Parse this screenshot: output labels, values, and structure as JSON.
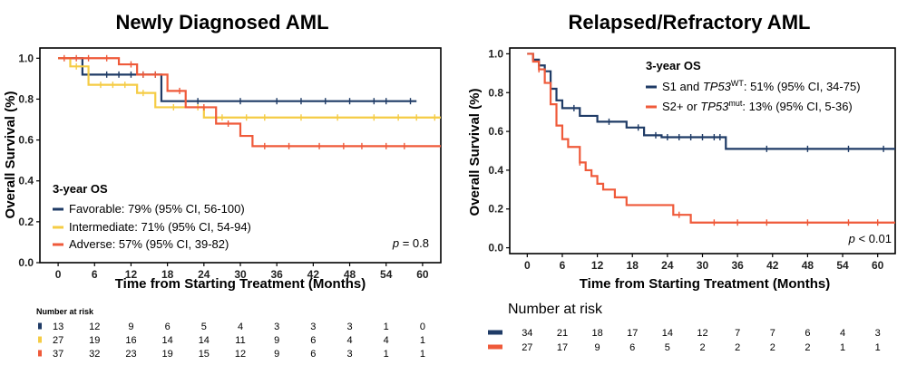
{
  "chart_data": [
    {
      "type": "line",
      "subtype": "kaplan-meier",
      "title": "Newly Diagnosed AML",
      "xlabel": "Time from Starting Treatment (Months)",
      "ylabel": "Overall Survival (%)",
      "xlim": [
        -3,
        63
      ],
      "ylim": [
        0,
        1.05
      ],
      "xticks": [
        "0",
        "6",
        "12",
        "18",
        "24",
        "30",
        "36",
        "42",
        "48",
        "54",
        "60"
      ],
      "yticks": [
        "0.0",
        "0.2",
        "0.4",
        "0.6",
        "0.8",
        "1.0"
      ],
      "legend_title": "3-year OS",
      "legend": [
        {
          "label": "Favorable: 79% (95% CI, 56-100)",
          "color": "#1f3b66"
        },
        {
          "label": "Intermediate: 71% (95% CI, 54-94)",
          "color": "#f5cc45"
        },
        {
          "label": "Adverse: 57% (95% CI, 39-82)",
          "color": "#ef5a3a"
        }
      ],
      "pvalue": {
        "p": "p",
        "rest": " = 0.8"
      },
      "series": [
        {
          "name": "Favorable",
          "color": "#1f3b66",
          "steps": [
            [
              0,
              1.0
            ],
            [
              4,
              0.92
            ],
            [
              17,
              0.79
            ],
            [
              59,
              0.79
            ]
          ],
          "censors": [
            5,
            8,
            10,
            12,
            14,
            16,
            23,
            30,
            36,
            40,
            44,
            48,
            52,
            54,
            58
          ]
        },
        {
          "name": "Intermediate",
          "color": "#f5cc45",
          "steps": [
            [
              0,
              1.0
            ],
            [
              2,
              0.96
            ],
            [
              5,
              0.87
            ],
            [
              9,
              0.87
            ],
            [
              13,
              0.83
            ],
            [
              16,
              0.76
            ],
            [
              24,
              0.71
            ],
            [
              63,
              0.71
            ]
          ],
          "censors": [
            3,
            7,
            9,
            11,
            14,
            19,
            23,
            27,
            31,
            34,
            40,
            46,
            52,
            56,
            59,
            62
          ]
        },
        {
          "name": "Adverse",
          "color": "#ef5a3a",
          "steps": [
            [
              0,
              1.0
            ],
            [
              10,
              0.97
            ],
            [
              13,
              0.92
            ],
            [
              18,
              0.84
            ],
            [
              21,
              0.76
            ],
            [
              26,
              0.68
            ],
            [
              30,
              0.62
            ],
            [
              32,
              0.57
            ],
            [
              63,
              0.57
            ]
          ],
          "censors": [
            1,
            3,
            5,
            8,
            12,
            14,
            16,
            20,
            24,
            28,
            34,
            38,
            43,
            47,
            50,
            54,
            57
          ]
        }
      ],
      "risk_table": {
        "title": "Number at risk",
        "rows": [
          {
            "color": "#1f3b66",
            "values": [
              "13",
              "12",
              "9",
              "6",
              "5",
              "4",
              "3",
              "3",
              "3",
              "1",
              "0"
            ]
          },
          {
            "color": "#f5cc45",
            "values": [
              "27",
              "19",
              "16",
              "14",
              "14",
              "11",
              "9",
              "6",
              "4",
              "4",
              "1"
            ]
          },
          {
            "color": "#ef5a3a",
            "values": [
              "37",
              "32",
              "23",
              "19",
              "15",
              "12",
              "9",
              "6",
              "3",
              "1",
              "1"
            ]
          }
        ]
      }
    },
    {
      "type": "line",
      "subtype": "kaplan-meier",
      "title": "Relapsed/Refractory AML",
      "xlabel": "Time from Starting Treatment (Months)",
      "ylabel": "Overall Survival (%)",
      "xlim": [
        -3,
        63
      ],
      "ylim": [
        -0.03,
        1.03
      ],
      "xticks": [
        "0",
        "6",
        "12",
        "18",
        "24",
        "30",
        "36",
        "42",
        "48",
        "54",
        "60"
      ],
      "yticks": [
        "0.0",
        "0.2",
        "0.4",
        "0.6",
        "0.8",
        "1.0"
      ],
      "legend_title": "3-year OS",
      "legend": [
        {
          "parts": [
            "S1 and ",
            "TP53",
            "WT",
            ": 51%  (95% CI, 34-75)"
          ],
          "color": "#1f3b66"
        },
        {
          "parts": [
            "S2+ or ",
            "TP53",
            "mut",
            ": 13% (95% CI, 5-36)"
          ],
          "color": "#ef5a3a"
        }
      ],
      "pvalue": {
        "p": "p",
        "rest": " < 0.01"
      },
      "series": [
        {
          "name": "S1 and TP53WT",
          "color": "#1f3b66",
          "steps": [
            [
              0,
              1.0
            ],
            [
              1,
              0.97
            ],
            [
              2,
              0.94
            ],
            [
              3,
              0.91
            ],
            [
              4,
              0.82
            ],
            [
              5,
              0.76
            ],
            [
              6,
              0.72
            ],
            [
              9,
              0.68
            ],
            [
              12,
              0.65
            ],
            [
              17,
              0.62
            ],
            [
              20,
              0.58
            ],
            [
              23,
              0.57
            ],
            [
              34,
              0.51
            ],
            [
              63,
              0.51
            ]
          ],
          "censors": [
            2,
            8,
            14,
            19,
            22,
            24,
            26,
            28,
            30,
            32,
            33,
            41,
            48,
            55,
            61
          ]
        },
        {
          "name": "S2+ or TP53mut",
          "color": "#ef5a3a",
          "steps": [
            [
              0,
              1.0
            ],
            [
              1,
              0.96
            ],
            [
              2,
              0.92
            ],
            [
              3,
              0.85
            ],
            [
              4,
              0.74
            ],
            [
              5,
              0.63
            ],
            [
              6,
              0.56
            ],
            [
              7,
              0.52
            ],
            [
              9,
              0.44
            ],
            [
              10,
              0.4
            ],
            [
              11,
              0.37
            ],
            [
              12,
              0.33
            ],
            [
              13,
              0.3
            ],
            [
              15,
              0.26
            ],
            [
              17,
              0.22
            ],
            [
              25,
              0.17
            ],
            [
              28,
              0.13
            ],
            [
              63,
              0.13
            ]
          ],
          "censors": [
            2,
            9,
            26,
            32,
            36,
            41,
            48,
            55,
            60
          ]
        }
      ],
      "risk_table": {
        "title": "Number at risk",
        "rows": [
          {
            "color": "#1f3b66",
            "values": [
              "34",
              "21",
              "18",
              "17",
              "14",
              "12",
              "7",
              "7",
              "6",
              "4",
              "3"
            ]
          },
          {
            "color": "#ef5a3a",
            "values": [
              "27",
              "17",
              "9",
              "6",
              "5",
              "2",
              "2",
              "2",
              "2",
              "1",
              "1"
            ]
          }
        ]
      }
    }
  ]
}
